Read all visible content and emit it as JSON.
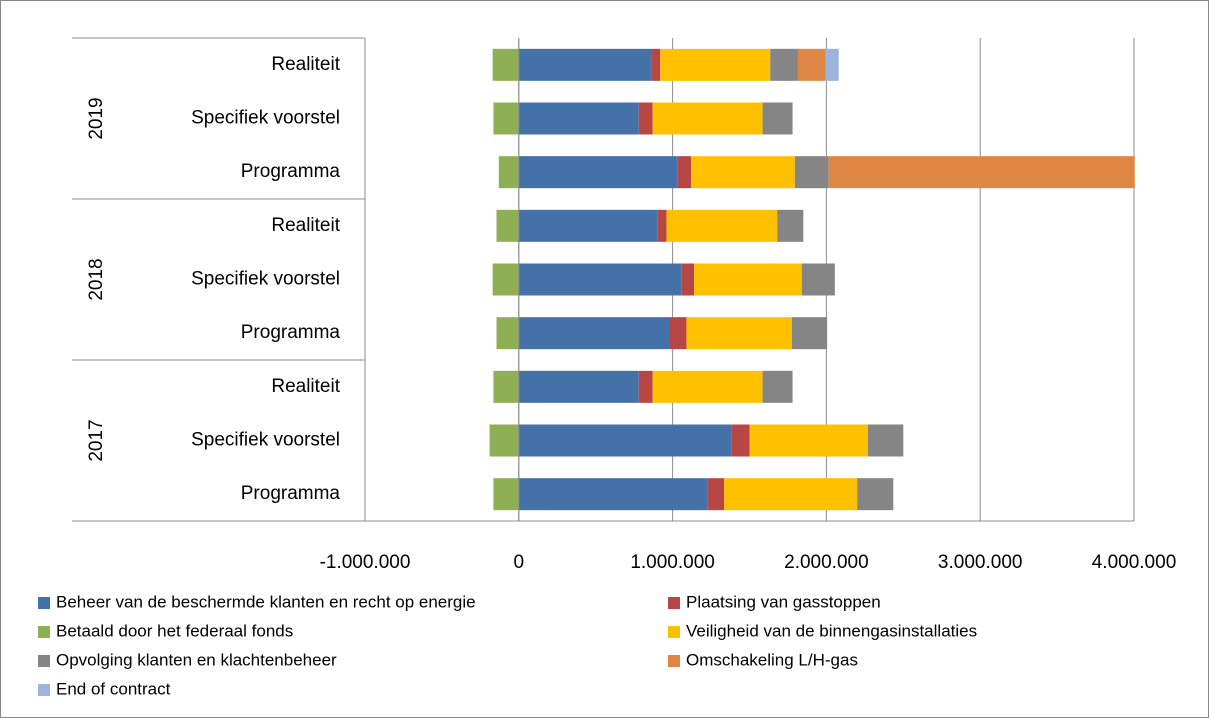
{
  "chart_data": {
    "type": "stacked-barh",
    "groups": [
      {
        "name": "2019",
        "span": 3
      },
      {
        "name": "2018",
        "span": 3
      },
      {
        "name": "2017",
        "span": 3
      }
    ],
    "categories": [
      "Realiteit",
      "Specifiek voorstel",
      "Programma",
      "Realiteit",
      "Specifiek voorstel",
      "Programma",
      "Realiteit",
      "Specifiek voorstel",
      "Programma"
    ],
    "series": [
      {
        "name": "Beheer van de beschermde klanten en recht op energie",
        "color": "#4472a8",
        "values": [
          860000,
          780000,
          1030000,
          900000,
          1060000,
          980000,
          780000,
          1385000,
          1225000
        ]
      },
      {
        "name": "Plaatsing van gasstoppen",
        "color": "#b84644",
        "values": [
          60000,
          90000,
          90000,
          60000,
          80000,
          110000,
          90000,
          115000,
          110000
        ]
      },
      {
        "name": "Betaald door het federaal fonds",
        "color": "#8faf55",
        "values": [
          -170000,
          -165000,
          -130000,
          -145000,
          -170000,
          -145000,
          -165000,
          -190000,
          -165000
        ]
      },
      {
        "name": "Veiligheid van de binnengasinstallaties",
        "color": "#ffc000",
        "values": [
          715000,
          715000,
          675000,
          720000,
          700000,
          685000,
          715000,
          770000,
          865000
        ]
      },
      {
        "name": "Opvolging klanten en klachtenbeheer",
        "color": "#858585",
        "values": [
          180000,
          195000,
          220000,
          170000,
          215000,
          230000,
          195000,
          230000,
          235000
        ]
      },
      {
        "name": "Omschakeling L/H-gas",
        "color": "#de8744",
        "values": [
          180000,
          null,
          1990000,
          null,
          null,
          null,
          null,
          null,
          null
        ]
      },
      {
        "name": "End of contract",
        "color": "#9cb4dc",
        "values": [
          85000,
          null,
          null,
          null,
          null,
          null,
          null,
          null,
          null
        ]
      }
    ],
    "xlim": [
      -1000000,
      4000000
    ],
    "xticks": [
      {
        "value": -1000000,
        "label": "-1.000.000"
      },
      0,
      {
        "value": 1000000,
        "label": "1.000.000"
      },
      {
        "value": 2000000,
        "label": "2.000.000"
      },
      {
        "value": 3000000,
        "label": "3.000.000"
      },
      {
        "value": 4000000,
        "label": "4.000.000"
      }
    ],
    "grid": true
  }
}
